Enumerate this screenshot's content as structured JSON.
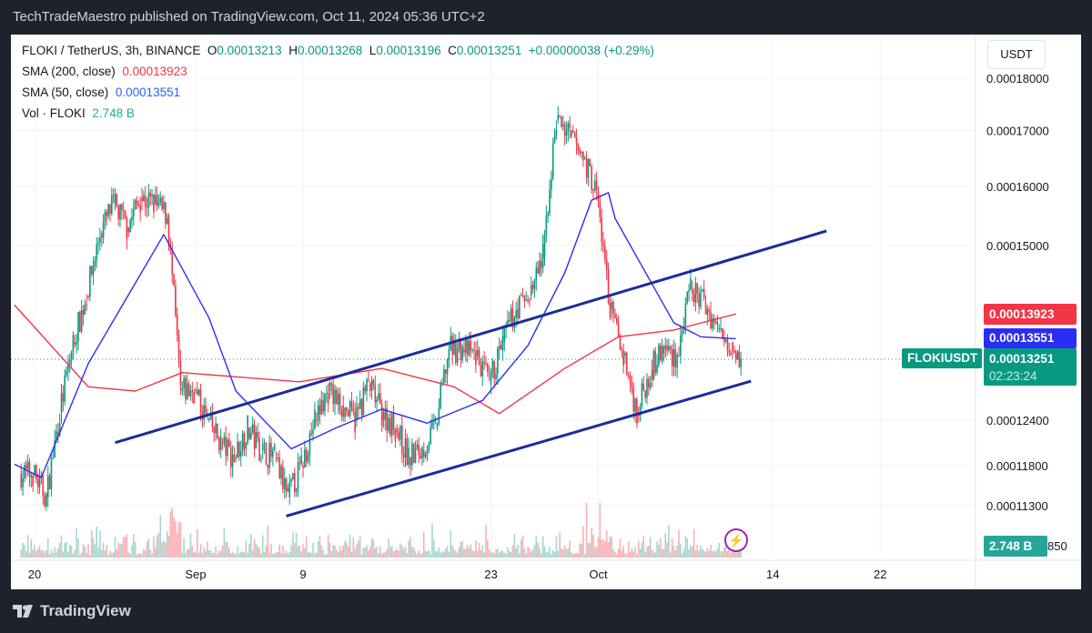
{
  "header": {
    "title": "TechTradeMaestro published on TradingView.com, Oct 11, 2024 05:36 UTC+2"
  },
  "legend": {
    "symbol": "FLOKI / TetherUS, 3h, BINANCE",
    "o_label": "O",
    "o": "0.00013213",
    "h_label": "H",
    "h": "0.00013268",
    "l_label": "L",
    "l": "0.00013196",
    "c_label": "C",
    "c": "0.00013251",
    "change": "+0.00000038 (+0.29%)",
    "sma200_label": "SMA (200, close)",
    "sma200": "0.00013923",
    "sma50_label": "SMA (50, close)",
    "sma50": "0.00013551",
    "vol_label": "Vol · FLOKI",
    "vol": "2.748 B"
  },
  "price_axis": {
    "currency": "USDT",
    "ticks": [
      "0.00018000",
      "0.00017000",
      "0.00016000",
      "0.00015000",
      "0.00012400",
      "0.00011800",
      "0.00011300",
      "850"
    ],
    "sma200_tag": "0.00013923",
    "sma50_tag": "0.00013551",
    "symbol_tag": "FLOKIUSDT",
    "last_price_tag": "0.00013251",
    "countdown": "02:23:24",
    "volume_tag": "2.748 B"
  },
  "time_axis": {
    "ticks": [
      "20",
      "Sep",
      "9",
      "23",
      "Oct",
      "14",
      "22"
    ]
  },
  "colors": {
    "up": "#089981",
    "down": "#f23645",
    "sma200": "#f23645",
    "sma50": "#2a2ef5",
    "channel": "#1a2d9c",
    "vol_up": "#a3d9cf",
    "vol_down": "#f7b1b6",
    "sma50_tag": "#2a2ef5",
    "last": "#089981",
    "vol_tag": "#26a69a"
  },
  "footer": {
    "brand": "TradingView"
  },
  "chart_data": {
    "type": "candlestick",
    "scale": "log",
    "timeframe": "3h",
    "daily_close_approx": [
      [
        "2024-08-19",
        0.000117
      ],
      [
        "2024-08-20",
        0.000114
      ],
      [
        "2024-08-21",
        0.000125
      ],
      [
        "2024-08-22",
        0.000135
      ],
      [
        "2024-08-23",
        0.000142
      ],
      [
        "2024-08-24",
        0.000152
      ],
      [
        "2024-08-25",
        0.000157
      ],
      [
        "2024-08-26",
        0.000153
      ],
      [
        "2024-08-27",
        0.000158
      ],
      [
        "2024-08-28",
        0.000157
      ],
      [
        "2024-08-29",
        0.000155
      ],
      [
        "2024-08-30",
        0.000128
      ],
      [
        "2024-08-31",
        0.000128
      ],
      [
        "2024-09-01",
        0.000124
      ],
      [
        "2024-09-02",
        0.000121
      ],
      [
        "2024-09-03",
        0.000119
      ],
      [
        "2024-09-04",
        0.000123
      ],
      [
        "2024-09-05",
        0.00012
      ],
      [
        "2024-09-06",
        0.000119
      ],
      [
        "2024-09-07",
        0.000114
      ],
      [
        "2024-09-08",
        0.000118
      ],
      [
        "2024-09-09",
        0.000124
      ],
      [
        "2024-09-10",
        0.000128
      ],
      [
        "2024-09-11",
        0.000126
      ],
      [
        "2024-09-12",
        0.000124
      ],
      [
        "2024-09-13",
        0.000129
      ],
      [
        "2024-09-14",
        0.000125
      ],
      [
        "2024-09-15",
        0.000123
      ],
      [
        "2024-09-16",
        0.000119
      ],
      [
        "2024-09-17",
        0.00012
      ],
      [
        "2024-09-18",
        0.000123
      ],
      [
        "2024-09-19",
        0.000134
      ],
      [
        "2024-09-20",
        0.000134
      ],
      [
        "2024-09-21",
        0.000133
      ],
      [
        "2024-09-22",
        0.000129
      ],
      [
        "2024-09-23",
        0.000135
      ],
      [
        "2024-09-24",
        0.00014
      ],
      [
        "2024-09-25",
        0.000142
      ],
      [
        "2024-09-26",
        0.000148
      ],
      [
        "2024-09-27",
        0.000172
      ],
      [
        "2024-09-28",
        0.000169
      ],
      [
        "2024-09-29",
        0.000165
      ],
      [
        "2024-09-30",
        0.000159
      ],
      [
        "2024-10-01",
        0.00014
      ],
      [
        "2024-10-02",
        0.000133
      ],
      [
        "2024-10-03",
        0.000125
      ],
      [
        "2024-10-04",
        0.000131
      ],
      [
        "2024-10-05",
        0.000134
      ],
      [
        "2024-10-06",
        0.000133
      ],
      [
        "2024-10-07",
        0.000143
      ],
      [
        "2024-10-08",
        0.000141
      ],
      [
        "2024-10-09",
        0.000137
      ],
      [
        "2024-10-10",
        0.000135
      ],
      [
        "2024-10-11",
        0.00013251
      ]
    ],
    "sma200": [
      [
        "2024-08-18T12:00",
        0.0001406
      ],
      [
        "2024-08-24",
        0.0001286
      ],
      [
        "2024-08-27T12:00",
        0.000128
      ],
      [
        "2024-08-31",
        0.0001306
      ],
      [
        "2024-09-08T18:00",
        0.0001293
      ],
      [
        "2024-09-14T21:00",
        0.0001312
      ],
      [
        "2024-09-20T06:00",
        0.0001286
      ],
      [
        "2024-09-23T15:00",
        0.0001249
      ],
      [
        "2024-09-28T12:00",
        0.0001312
      ],
      [
        "2024-10-02T12:00",
        0.0001358
      ],
      [
        "2024-10-06T15:00",
        0.0001368
      ],
      [
        "2024-10-11T06:00",
        0.00013923
      ]
    ],
    "sma50": [
      [
        "2024-08-18T12:00",
        0.0001182
      ],
      [
        "2024-08-20T12:00",
        0.0001165
      ],
      [
        "2024-08-24",
        0.0001319
      ],
      [
        "2024-08-29T15:00",
        0.0001518
      ],
      [
        "2024-09-02",
        0.0001386
      ],
      [
        "2024-09-04",
        0.000128
      ],
      [
        "2024-09-08T03:00",
        0.0001202
      ],
      [
        "2024-09-11T12:00",
        0.000123
      ],
      [
        "2024-09-14T21:00",
        0.0001255
      ],
      [
        "2024-09-18T06:00",
        0.0001236
      ],
      [
        "2024-09-22T09:00",
        0.0001267
      ],
      [
        "2024-09-25T18:00",
        0.0001345
      ],
      [
        "2024-09-28T12:00",
        0.0001456
      ],
      [
        "2024-09-30T12:00",
        0.0001576
      ],
      [
        "2024-10-01T18:00",
        0.0001589
      ],
      [
        "2024-10-02T06:00",
        0.0001545
      ],
      [
        "2024-10-06T15:00",
        0.0001379
      ],
      [
        "2024-10-08T15:00",
        0.0001358
      ],
      [
        "2024-10-11T06:00",
        0.00013551
      ]
    ],
    "trendlines": [
      {
        "from": [
          "2024-08-26",
          0.000121
        ],
        "to": [
          "2024-10-18",
          0.0001524
        ]
      },
      {
        "from": [
          "2024-09-07T18:00",
          0.0001117
        ],
        "to": [
          "2024-10-12T09:00",
          0.0001294
        ]
      }
    ],
    "last_volume": "2.748 B"
  }
}
